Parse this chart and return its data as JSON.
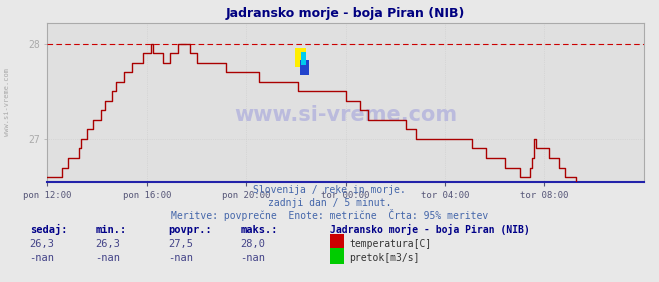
{
  "title": "Jadransko morje - boja Piran (NIB)",
  "title_color": "#000080",
  "bg_color": "#e8e8e8",
  "plot_bg_color": "#e0e0e0",
  "line_color": "#aa0000",
  "dashed_line_color": "#cc0000",
  "grid_color": "#cccccc",
  "x_labels": [
    "pon 12:00",
    "pon 16:00",
    "pon 20:00",
    "tor 00:00",
    "tor 04:00",
    "tor 08:00"
  ],
  "x_ticks": [
    0,
    48,
    96,
    144,
    192,
    240
  ],
  "x_max": 288,
  "y_min": 26.55,
  "y_max": 28.22,
  "y_ticks": [
    27,
    28
  ],
  "y_dashed": 28.0,
  "subtitle1": "Slovenija / reke in morje.",
  "subtitle2": "zadnji dan / 5 minut.",
  "subtitle3": "Meritve: povprečne  Enote: metrične  Črta: 95% meritev",
  "subtitle_color": "#4466aa",
  "watermark": "www.si-vreme.com",
  "watermark_color": "#bbbbdd",
  "label_sedaj": "sedaj:",
  "label_min": "min.:",
  "label_povpr": "povpr.:",
  "label_maks": "maks.:",
  "val_sedaj": "26,3",
  "val_min": "26,3",
  "val_povpr": "27,5",
  "val_maks": "28,0",
  "val_sedaj2": "-nan",
  "val_min2": "-nan",
  "val_povpr2": "-nan",
  "val_maks2": "-nan",
  "legend_title": "Jadransko morje - boja Piran (NIB)",
  "legend_temp": "temperatura[C]",
  "legend_pretok": "pretok[m3/s]",
  "temp_color": "#cc0000",
  "pretok_color": "#00cc00",
  "sidebar_text": "www.si-vreme.com",
  "sidebar_color": "#aaaaaa",
  "label_color": "#000088",
  "val_color": "#444488"
}
